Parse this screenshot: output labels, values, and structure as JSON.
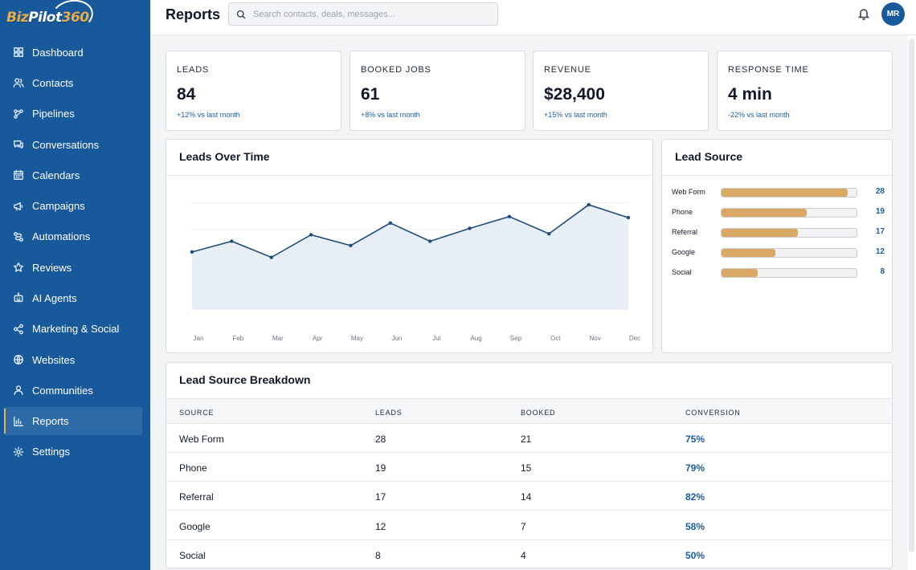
{
  "brand": {
    "logo_text_a": "Biz",
    "logo_text_b": "Pilot",
    "logo_text_c": "360"
  },
  "sidebar": {
    "items": [
      {
        "label": "Dashboard",
        "icon": "grid-icon"
      },
      {
        "label": "Contacts",
        "icon": "users-icon"
      },
      {
        "label": "Pipelines",
        "icon": "pipeline-icon"
      },
      {
        "label": "Conversations",
        "icon": "chat-icon"
      },
      {
        "label": "Calendars",
        "icon": "calendar-icon"
      },
      {
        "label": "Campaigns",
        "icon": "megaphone-icon"
      },
      {
        "label": "Automations",
        "icon": "automation-icon"
      },
      {
        "label": "Reviews",
        "icon": "star-icon"
      },
      {
        "label": "AI Agents",
        "icon": "robot-icon"
      },
      {
        "label": "Marketing & Social",
        "icon": "share-icon"
      },
      {
        "label": "Websites",
        "icon": "globe-icon"
      },
      {
        "label": "Communities",
        "icon": "community-icon"
      },
      {
        "label": "Reports",
        "icon": "chart-icon",
        "active": true
      },
      {
        "label": "Settings",
        "icon": "gear-icon"
      }
    ]
  },
  "header": {
    "title": "Reports",
    "search_placeholder": "Search contacts, deals, messages...",
    "avatar_initials": "MR"
  },
  "kpis": [
    {
      "label": "LEADS",
      "value": "84",
      "delta": "+12% vs last month"
    },
    {
      "label": "BOOKED JOBS",
      "value": "61",
      "delta": "+8% vs last month"
    },
    {
      "label": "REVENUE",
      "value": "$28,400",
      "delta": "+15% vs last month"
    },
    {
      "label": "RESPONSE TIME",
      "value": "4 min",
      "delta": "-22% vs last month"
    }
  ],
  "leads_over_time": {
    "title": "Leads Over Time"
  },
  "lead_source": {
    "title": "Lead Source",
    "max": 30,
    "items": [
      {
        "name": "Web Form",
        "value": 28
      },
      {
        "name": "Phone",
        "value": 19
      },
      {
        "name": "Referral",
        "value": 17
      },
      {
        "name": "Google",
        "value": 12
      },
      {
        "name": "Social",
        "value": 8
      }
    ]
  },
  "breakdown": {
    "title": "Lead Source Breakdown",
    "columns": [
      "SOURCE",
      "LEADS",
      "BOOKED",
      "CONVERSION"
    ],
    "rows": [
      [
        "Web Form",
        "28",
        "21",
        "75%"
      ],
      [
        "Phone",
        "19",
        "15",
        "79%"
      ],
      [
        "Referral",
        "17",
        "14",
        "82%"
      ],
      [
        "Google",
        "12",
        "7",
        "58%"
      ],
      [
        "Social",
        "8",
        "4",
        "50%"
      ]
    ]
  },
  "chart_data": {
    "type": "area",
    "categories": [
      "Jan",
      "Feb",
      "Mar",
      "Apr",
      "May",
      "Jun",
      "Jul",
      "Aug",
      "Sep",
      "Oct",
      "Nov",
      "Dec"
    ],
    "series": [
      {
        "values": [
          54,
          64,
          49,
          70,
          60,
          81,
          64,
          76,
          87,
          71,
          98,
          86
        ]
      }
    ],
    "ylim": [
      0,
      125
    ],
    "grid": true,
    "colors": {
      "line": "#1f4e7c",
      "fill": "#e8eef5",
      "grid": "#eceef1"
    }
  }
}
